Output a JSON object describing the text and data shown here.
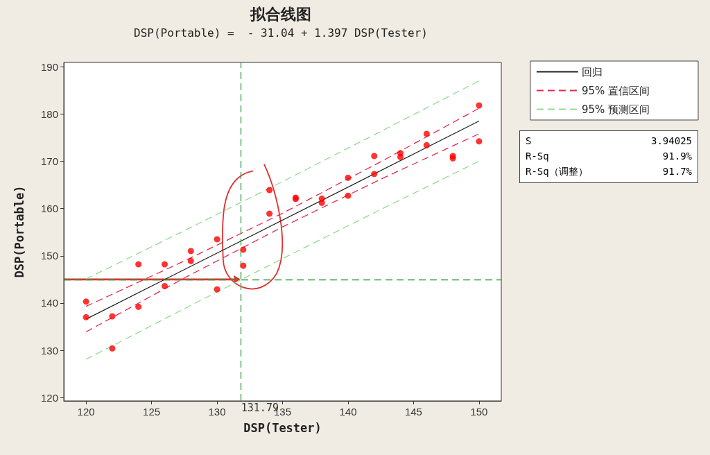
{
  "chart_data": {
    "type": "scatter",
    "title": "拟合线图",
    "subtitle": "DSP(Portable) =  - 31.04 + 1.397 DSP(Tester)",
    "xlabel": "DSP(Tester)",
    "ylabel": "DSP(Portable)",
    "xlim": [
      118.3,
      151.7
    ],
    "xticks": [
      120,
      125,
      130,
      135,
      140,
      145,
      150
    ],
    "ylim": [
      119.3,
      190.9
    ],
    "yticks": [
      120,
      130,
      140,
      150,
      160,
      170,
      180,
      190
    ],
    "grid": false,
    "legend": "right",
    "marker": "circle",
    "series": [
      {
        "color": "#ff0000",
        "x": [
          120,
          120,
          122,
          122,
          124,
          124,
          126,
          126,
          128,
          128,
          130,
          130,
          132,
          132,
          134,
          134,
          136,
          136,
          138,
          138,
          140,
          140,
          142,
          142,
          144,
          144,
          146,
          146,
          148,
          148,
          150,
          150
        ],
        "values": [
          140.3,
          137.0,
          137.2,
          130.4,
          148.2,
          139.2,
          148.2,
          143.6,
          151.0,
          148.9,
          153.5,
          142.9,
          151.3,
          147.9,
          163.9,
          158.9,
          162.3,
          162.0,
          162.1,
          161.2,
          166.5,
          162.7,
          171.1,
          167.3,
          171.7,
          170.9,
          175.8,
          173.4,
          171.1,
          170.6,
          181.8,
          174.2
        ]
      },
      {
        "type": "line",
        "name": "回归",
        "color": "#222222",
        "line_style": "solid",
        "marker": "none",
        "x": [
          120,
          150
        ],
        "values": [
          136.6,
          178.5
        ]
      },
      {
        "type": "line",
        "name": "95% 置信区间",
        "color": "#e8284a",
        "line_style": "dashed",
        "marker": "none",
        "x": [
          120,
          127.5,
          135,
          142.5,
          150
        ],
        "values": [
          139.3,
          148.9,
          159.0,
          169.9,
          181.2
        ]
      },
      {
        "type": "line",
        "color": "#e8284a",
        "line_style": "dashed",
        "marker": "none",
        "x": [
          120,
          127.5,
          135,
          142.5,
          150
        ],
        "values": [
          133.9,
          145.3,
          156.1,
          166.2,
          175.8
        ]
      },
      {
        "type": "line",
        "name": "95% 预测区间",
        "color": "#90dc90",
        "line_style": "dashed",
        "marker": "none",
        "x": [
          120,
          127.5,
          135,
          142.5,
          150
        ],
        "values": [
          145.1,
          155.3,
          165.7,
          176.3,
          187.0
        ]
      },
      {
        "type": "line",
        "color": "#90dc90",
        "line_style": "dashed",
        "marker": "none",
        "x": [
          120,
          127.5,
          135,
          142.5,
          150
        ],
        "values": [
          128.1,
          138.8,
          149.4,
          159.8,
          170.0
        ]
      }
    ],
    "ref_lines": [
      {
        "axis": "y",
        "value": 145,
        "color": "#2e9e3e",
        "line_style": "dashed"
      },
      {
        "axis": "x",
        "value": 131.79,
        "label": "131.79",
        "color": "#2e9e3e",
        "line_style": "dashed"
      }
    ],
    "annotations": [
      "S",
      "3.94025",
      "R-Sq",
      "91.9%",
      "R-Sq（调整）",
      "91.7%"
    ]
  }
}
